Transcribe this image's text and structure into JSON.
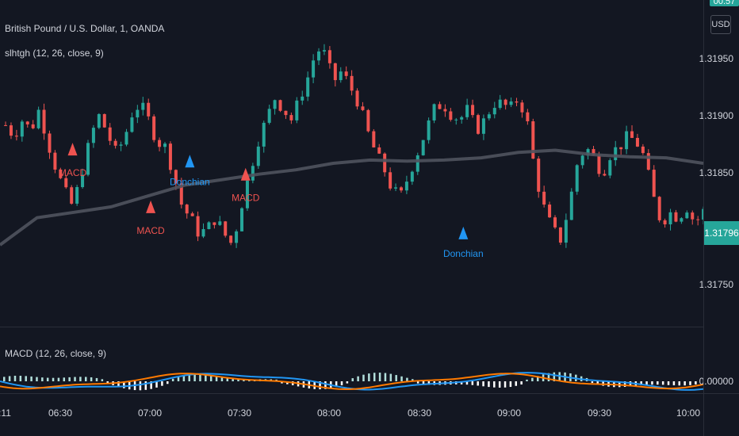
{
  "header": {
    "symbol_line": "British Pound / U.S. Dollar, 1, OANDA",
    "indicator_line": "slhtgh (12, 26, close, 9)",
    "macd_line": "MACD (12, 26, close, 9)",
    "currency": "USD",
    "top_badge": "00.57"
  },
  "colors": {
    "background": "#131722",
    "up": "#26a69a",
    "down": "#ef5350",
    "donchian": "#2196f3",
    "macd_signal_label": "#ef5350",
    "ma": "#50535e",
    "macd_line": "#2196f3",
    "signal_line": "#ff7a00",
    "hist_pos": "#b2dfdb",
    "hist_neg": "#ffffff"
  },
  "chart_data": {
    "type": "candlestick",
    "price_axis": {
      "ticks": [
        "1.31950",
        "1.31900",
        "1.31850",
        "1.31800",
        "1.31750"
      ],
      "range": [
        1.3169,
        1.3199
      ],
      "last_price": "1.31796"
    },
    "macd_axis": {
      "ticks": [
        "0.00000"
      ]
    },
    "time_ticks": [
      ":11",
      "06:30",
      "07:00",
      "07:30",
      "08:00",
      "08:30",
      "09:00",
      "09:30",
      "10:00"
    ],
    "time_range_minutes": [
      360,
      480
    ],
    "candles_sampled_close": [
      1.31875,
      1.31865,
      1.3188,
      1.3187,
      1.3189,
      1.3186,
      1.31835,
      1.31815,
      1.318,
      1.3183,
      1.3186,
      1.31885,
      1.3187,
      1.3185,
      1.3186,
      1.31885,
      1.31895,
      1.3188,
      1.3186,
      1.31855,
      1.3183,
      1.318,
      1.3179,
      1.31775,
      1.3178,
      1.3179,
      1.31775,
      1.31765,
      1.318,
      1.3183,
      1.3186,
      1.3188,
      1.319,
      1.3189,
      1.3188,
      1.319,
      1.3192,
      1.31945,
      1.3194,
      1.31915,
      1.31925,
      1.3191,
      1.31895,
      1.3187,
      1.3185,
      1.31835,
      1.31815,
      1.3181,
      1.3183,
      1.3185,
      1.3187,
      1.3189,
      1.31895,
      1.31885,
      1.3188,
      1.3189,
      1.3187,
      1.3188,
      1.31895,
      1.31895,
      1.3189,
      1.319,
      1.3188,
      1.3183,
      1.318,
      1.3178,
      1.3177,
      1.318,
      1.3184,
      1.31855,
      1.31845,
      1.3183,
      1.3185,
      1.31855,
      1.31865,
      1.3186,
      1.31845,
      1.3181,
      1.31785,
      1.31795,
      1.3179,
      1.318,
      1.31785,
      1.31796
    ],
    "moving_average": [
      1.31765,
      1.3179,
      1.31795,
      1.318,
      1.3181,
      1.3182,
      1.31825,
      1.3183,
      1.31834,
      1.3184,
      1.31843,
      1.31842,
      1.31843,
      1.31845,
      1.3185,
      1.31852,
      1.31848,
      1.31846,
      1.31845,
      1.3184
    ],
    "signals": [
      {
        "label": "MACD",
        "type": "sell-below",
        "time": 367,
        "price": 1.31853
      },
      {
        "label": "MACD",
        "type": "sell-below",
        "time": 381,
        "price": 1.318
      },
      {
        "label": "Donchian",
        "type": "buy",
        "time": 388,
        "price": 1.31842
      },
      {
        "label": "MACD",
        "type": "sell-below",
        "time": 398,
        "price": 1.3183
      },
      {
        "label": "Donchian",
        "type": "buy",
        "time": 437,
        "price": 1.31776
      },
      {
        "label": "Donchian",
        "type": "buy",
        "time": 502,
        "price": 1.31835
      },
      {
        "label": "Donchian",
        "type": "buy",
        "time": 566,
        "price": 1.31818
      },
      {
        "label": "MACD",
        "type": "sell-above",
        "time": 584,
        "price": 1.3189
      }
    ]
  }
}
